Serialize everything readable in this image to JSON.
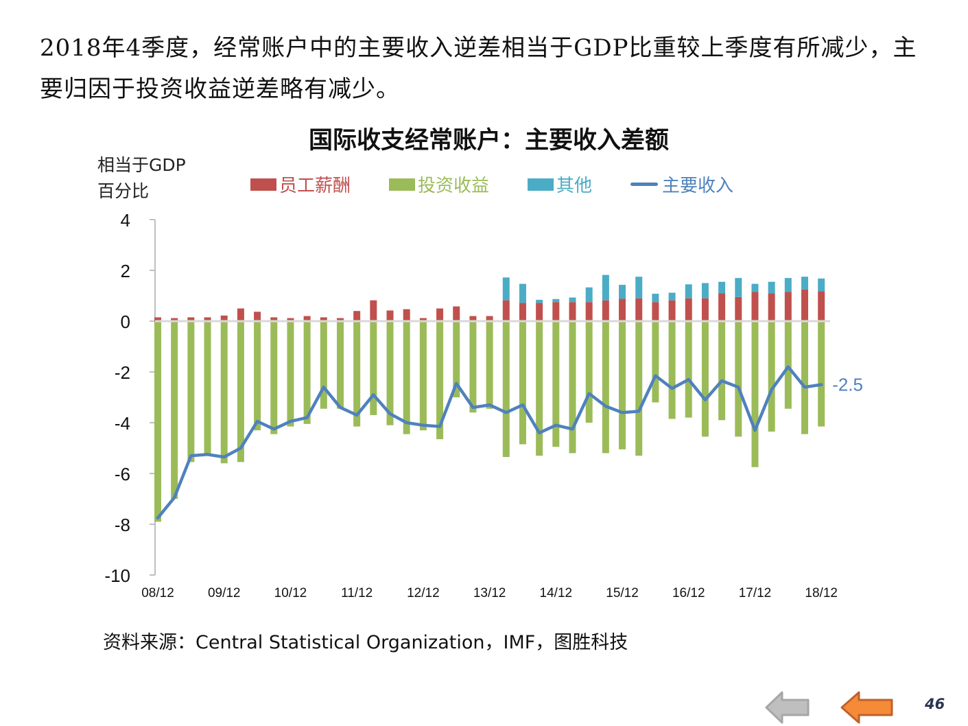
{
  "slide": {
    "headline": "2018年4季度，经常账户中的主要收入逆差相当于GDP比重较上季度有所减少，主要归因于投资收益逆差略有减少。",
    "source": "资料来源：Central Statistical Organization，IMF，图胜科技",
    "page_number": "46",
    "nav": {
      "back_gray_icon": "arrow-left-gray",
      "back_orange_icon": "arrow-left-orange"
    }
  },
  "chart_data": {
    "type": "bar",
    "stacked": true,
    "title": "国际收支经常账户：主要收入差额",
    "ylabel": "相当于GDP百分比",
    "ylabel_lines": [
      "相当于GDP",
      "百分比"
    ],
    "xlabel": "",
    "ylim": [
      -10,
      4
    ],
    "yticks": [
      4,
      2,
      0,
      -2,
      -4,
      -6,
      -8,
      -10
    ],
    "grid": false,
    "legend_position": "top",
    "xtick_labels": [
      "08/12",
      "09/12",
      "10/12",
      "11/12",
      "12/12",
      "13/12",
      "14/12",
      "15/12",
      "16/12",
      "17/12",
      "18/12"
    ],
    "xtick_every": 4,
    "categories": [
      "08Q4",
      "09Q1",
      "09Q2",
      "09Q3",
      "09Q4",
      "10Q1",
      "10Q2",
      "10Q3",
      "10Q4",
      "11Q1",
      "11Q2",
      "11Q3",
      "11Q4",
      "12Q1",
      "12Q2",
      "12Q3",
      "12Q4",
      "13Q1",
      "13Q2",
      "13Q3",
      "13Q4",
      "14Q1",
      "14Q2",
      "14Q3",
      "14Q4",
      "15Q1",
      "15Q2",
      "15Q3",
      "15Q4",
      "16Q1",
      "16Q2",
      "16Q3",
      "16Q4",
      "17Q1",
      "17Q2",
      "17Q3",
      "17Q4",
      "18Q1",
      "18Q2",
      "18Q3",
      "18Q4"
    ],
    "series": [
      {
        "name": "员工薪酬",
        "kind": "bar",
        "color": "#c0504d",
        "values": [
          0.15,
          0.12,
          0.15,
          0.15,
          0.22,
          0.5,
          0.37,
          0.15,
          0.12,
          0.2,
          0.15,
          0.12,
          0.4,
          0.82,
          0.42,
          0.47,
          0.12,
          0.5,
          0.58,
          0.2,
          0.2,
          0.82,
          0.72,
          0.72,
          0.75,
          0.75,
          0.75,
          0.82,
          0.88,
          0.9,
          0.75,
          0.82,
          0.9,
          0.9,
          1.1,
          0.95,
          1.15,
          1.1,
          1.15,
          1.25,
          1.18
        ]
      },
      {
        "name": "投资收益",
        "kind": "bar",
        "color": "#9bbb59",
        "values": [
          -7.9,
          -7.0,
          -5.55,
          -5.3,
          -5.6,
          -5.55,
          -4.3,
          -4.45,
          -4.15,
          -4.05,
          -3.45,
          -3.45,
          -4.15,
          -3.7,
          -4.1,
          -4.45,
          -4.3,
          -4.65,
          -3.0,
          -3.6,
          -3.45,
          -5.35,
          -4.85,
          -5.3,
          -4.95,
          -5.2,
          -4.0,
          -5.2,
          -5.05,
          -5.3,
          -3.2,
          -3.85,
          -3.8,
          -4.55,
          -3.9,
          -4.55,
          -5.75,
          -4.35,
          -3.45,
          -4.45,
          -4.15
        ]
      },
      {
        "name": "其他",
        "kind": "bar",
        "color": "#4bacc6",
        "values": [
          0,
          0,
          0,
          0,
          0,
          0,
          0,
          0,
          0,
          0,
          0,
          0,
          0,
          0,
          0,
          0,
          0,
          0,
          0,
          0,
          0,
          0.9,
          0.75,
          0.12,
          0.12,
          0.18,
          0.58,
          1.0,
          0.55,
          0.85,
          0.33,
          0.3,
          0.55,
          0.6,
          0.45,
          0.75,
          0.32,
          0.45,
          0.55,
          0.5,
          0.5
        ]
      },
      {
        "name": "主要收入",
        "kind": "line",
        "color": "#4f81bd",
        "values": [
          -7.75,
          -6.95,
          -5.3,
          -5.25,
          -5.35,
          -5.0,
          -3.95,
          -4.25,
          -3.95,
          -3.8,
          -2.6,
          -3.4,
          -3.7,
          -2.9,
          -3.65,
          -4.0,
          -4.1,
          -4.15,
          -2.45,
          -3.4,
          -3.3,
          -3.6,
          -3.3,
          -4.4,
          -4.1,
          -4.25,
          -2.85,
          -3.35,
          -3.6,
          -3.55,
          -2.15,
          -2.65,
          -2.3,
          -3.1,
          -2.35,
          -2.6,
          -4.3,
          -2.7,
          -1.8,
          -2.6,
          -2.5
        ]
      }
    ],
    "annotations": [
      {
        "text": "-2.5",
        "series": "主要收入",
        "category": "18Q4"
      }
    ]
  }
}
